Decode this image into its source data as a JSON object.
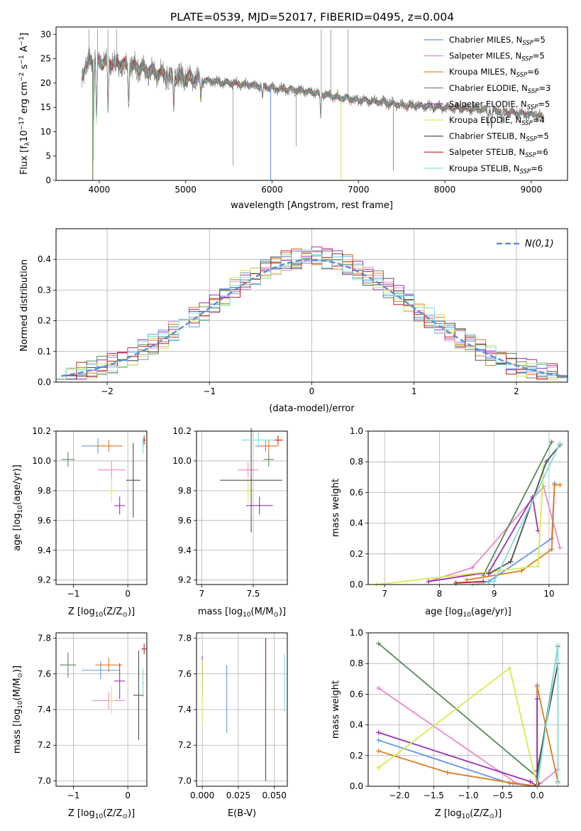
{
  "figure_title": "PLATE=0539, MJD=52017, FIBERID=0495, z=0.004",
  "colors": {
    "chabrier_miles": "#6495ed",
    "salpeter_miles": "#e98ac9",
    "kroupa_miles": "#e07b1f",
    "chabrier_elodie": "#5a8a5e",
    "salpeter_elodie": "#9b30b3",
    "kroupa_elodie": "#d4ec50",
    "chabrier_stelib": "#505050",
    "salpeter_stelib": "#c02020",
    "kroupa_stelib": "#80dede",
    "data": "#7f7f7f"
  },
  "chart_data": [
    {
      "id": "spectrum",
      "type": "line",
      "xlabel": "wavelength [Angstrom, rest frame]",
      "ylabel_parts": [
        "Flux [f",
        "λ",
        "10",
        "−17",
        " erg cm",
        "−2",
        " s",
        "−1",
        " A",
        "−1",
        "]"
      ],
      "xlim": [
        3500,
        9420
      ],
      "ylim": [
        0,
        31.5
      ],
      "xticks": [
        4000,
        5000,
        6000,
        7000,
        8000,
        9000
      ],
      "yticks": [
        0,
        5,
        10,
        15,
        20,
        25,
        30
      ],
      "legend_position": "top-right",
      "legend": [
        {
          "name": "Chabrier MILES, N",
          "sub": "SSP",
          "suffix": "=5",
          "color": "#6495ed"
        },
        {
          "name": "Salpeter MILES, N",
          "sub": "SSP",
          "suffix": "=5",
          "color": "#e98ac9"
        },
        {
          "name": "Kroupa MILES, N",
          "sub": "SSP",
          "suffix": "=6",
          "color": "#e07b1f"
        },
        {
          "name": "Chabrier ELODIE, N",
          "sub": "SSP",
          "suffix": "=3",
          "color": "#5a8a5e"
        },
        {
          "name": "Salpeter ELODIE, N",
          "sub": "SSP",
          "suffix": "=5",
          "color": "#9b30b3"
        },
        {
          "name": "Kroupa ELODIE, N",
          "sub": "SSP",
          "suffix": "=4",
          "color": "#d4ec50"
        },
        {
          "name": "Chabrier STELIB, N",
          "sub": "SSP",
          "suffix": "=5",
          "color": "#505050"
        },
        {
          "name": "Salpeter STELIB, N",
          "sub": "SSP",
          "suffix": "=6",
          "color": "#c02020"
        },
        {
          "name": "Kroupa STELIB, N",
          "sub": "SSP",
          "suffix": "=6",
          "color": "#80dede"
        }
      ],
      "continuum": [
        [
          3800,
          22
        ],
        [
          3900,
          25
        ],
        [
          4000,
          24.5
        ],
        [
          4200,
          24
        ],
        [
          4500,
          23
        ],
        [
          4800,
          21.5
        ],
        [
          5000,
          21
        ],
        [
          5200,
          20.5
        ],
        [
          5500,
          20
        ],
        [
          5800,
          19.5
        ],
        [
          6000,
          19
        ],
        [
          6300,
          18.5
        ],
        [
          6500,
          18
        ],
        [
          6800,
          17
        ],
        [
          7000,
          16.5
        ],
        [
          7300,
          16
        ],
        [
          7500,
          15.5
        ],
        [
          7800,
          15.2
        ],
        [
          8000,
          15
        ],
        [
          8500,
          14.5
        ],
        [
          9000,
          13.5
        ],
        [
          9150,
          13
        ]
      ],
      "absorptions": [
        [
          3934,
          10.5
        ],
        [
          3969,
          12
        ],
        [
          4102,
          14
        ],
        [
          4340,
          15
        ],
        [
          4861,
          16
        ],
        [
          5175,
          17
        ],
        [
          5890,
          17
        ],
        [
          6563,
          13
        ],
        [
          8498,
          12
        ],
        [
          8542,
          11
        ],
        [
          8662,
          12
        ]
      ],
      "data_spikes": [
        [
          3880,
          31
        ],
        [
          3980,
          31
        ],
        [
          4100,
          31
        ],
        [
          4200,
          31
        ],
        [
          5550,
          3
        ],
        [
          5985,
          0
        ],
        [
          6280,
          7
        ],
        [
          6570,
          31
        ],
        [
          6680,
          31
        ],
        [
          6800,
          0
        ],
        [
          6880,
          31
        ]
      ],
      "model_drops": [
        {
          "x": 3925,
          "to": 0,
          "color": "#e07b1f"
        },
        {
          "x": 3925,
          "to": 0,
          "color": "#5a8a5e"
        },
        {
          "x": 3935,
          "to": 4,
          "color": "#80dede"
        },
        {
          "x": 5985,
          "to": 0,
          "color": "#6495ed"
        },
        {
          "x": 6800,
          "to": 0,
          "color": "#d4ec50"
        },
        {
          "x": 7405,
          "to": 2,
          "color": "#e07b1f"
        }
      ]
    },
    {
      "id": "residuals",
      "type": "histogram",
      "xlabel": "(data-model)/error",
      "ylabel": "Normed distribution",
      "xlim": [
        -2.5,
        2.5
      ],
      "ylim": [
        0,
        0.5
      ],
      "xticks": [
        -2,
        -1,
        0,
        1,
        2
      ],
      "yticks": [
        0,
        0.1,
        0.2,
        0.3,
        0.4
      ],
      "grid": true,
      "reference_curve": {
        "label": "N(0,1)",
        "mean": 0,
        "sigma": 1,
        "color": "#5b8fd9"
      },
      "legend_position": "top-right"
    },
    {
      "id": "age-vs-Z",
      "type": "errorbar",
      "xlabel_parts": [
        "Z [log",
        "10",
        "(Z/Z",
        "⊙",
        ")]"
      ],
      "ylabel_parts": [
        "age  [log",
        "10",
        "(age/yr)]"
      ],
      "xlim": [
        -1.32,
        0.35
      ],
      "ylim": [
        9.17,
        10.2
      ],
      "xticks": [
        -1,
        0
      ],
      "yticks": [
        9.2,
        9.4,
        9.6,
        9.8,
        10.0,
        10.2
      ],
      "grid": true,
      "points": [
        {
          "color": "#6495ed",
          "x": -0.55,
          "y": 10.1,
          "xerr": 0.3,
          "yerr": 0.05
        },
        {
          "color": "#e98ac9",
          "x": -0.3,
          "y": 9.94,
          "xerr": 0.25,
          "yerr": 0.06
        },
        {
          "color": "#e07b1f",
          "x": -0.35,
          "y": 10.1,
          "xerr": 0.25,
          "yerr": 0.04
        },
        {
          "color": "#5a8a5e",
          "x": -1.1,
          "y": 10.01,
          "xerr": 0.12,
          "yerr": 0.05
        },
        {
          "color": "#9b30b3",
          "x": -0.15,
          "y": 9.7,
          "xerr": 0.1,
          "yerr": 0.06
        },
        {
          "color": "#d4ec50",
          "x": -0.3,
          "y": 9.8,
          "xerr": 0.08,
          "yerr": 0.08
        },
        {
          "color": "#505050",
          "x": 0.1,
          "y": 9.87,
          "xerr": 0.13,
          "yerr": 0.25
        },
        {
          "color": "#c02020",
          "x": 0.3,
          "y": 10.14,
          "xerr": 0.03,
          "yerr": 0.03
        },
        {
          "color": "#80dede",
          "x": 0.28,
          "y": 10.1,
          "xerr": 0.02,
          "yerr": 0.05
        }
      ]
    },
    {
      "id": "age-vs-mass",
      "type": "errorbar",
      "xlabel_parts": [
        "mass [log",
        "10",
        "(M/M",
        "⊙",
        ")]"
      ],
      "ylabel_parts": [],
      "xlim": [
        6.95,
        7.83
      ],
      "ylim": [
        9.17,
        10.2
      ],
      "xticks": [
        7.0,
        7.5
      ],
      "yticks": [
        9.2,
        9.4,
        9.6,
        9.8,
        10.0,
        10.2
      ],
      "grid": true,
      "points": [
        {
          "color": "#6495ed",
          "x": 7.62,
          "y": 10.1,
          "xerr": 0.1,
          "yerr": 0.04
        },
        {
          "color": "#e98ac9",
          "x": 7.45,
          "y": 9.94,
          "xerr": 0.1,
          "yerr": 0.05
        },
        {
          "color": "#e07b1f",
          "x": 7.65,
          "y": 10.1,
          "xerr": 0.1,
          "yerr": 0.04
        },
        {
          "color": "#5a8a5e",
          "x": 7.65,
          "y": 10.01,
          "xerr": 0.05,
          "yerr": 0.05
        },
        {
          "color": "#9b30b3",
          "x": 7.56,
          "y": 9.7,
          "xerr": 0.13,
          "yerr": 0.06
        },
        {
          "color": "#d4ec50",
          "x": 7.45,
          "y": 9.8,
          "xerr": 0.05,
          "yerr": 0.08
        },
        {
          "color": "#505050",
          "x": 7.48,
          "y": 9.87,
          "xerr": 0.3,
          "yerr": 0.35
        },
        {
          "color": "#c02020",
          "x": 7.74,
          "y": 10.14,
          "xerr": 0.05,
          "yerr": 0.03
        },
        {
          "color": "#80dede",
          "x": 7.55,
          "y": 10.14,
          "xerr": 0.16,
          "yerr": 0.05
        }
      ]
    },
    {
      "id": "weight-vs-age",
      "type": "line",
      "xlabel_parts": [
        "age  [log",
        "10",
        "(age/yr)]"
      ],
      "ylabel": "mass weight",
      "xlim": [
        6.7,
        10.35
      ],
      "ylim": [
        0,
        1.0
      ],
      "xticks": [
        7,
        8,
        9,
        10
      ],
      "yticks": [
        0,
        0.2,
        0.4,
        0.6,
        0.8,
        1.0
      ],
      "grid": true,
      "series": [
        {
          "color": "#6495ed",
          "x": [
            8.3,
            8.9,
            10.05,
            10.1
          ],
          "y": [
            0.01,
            0.02,
            0.3,
            0.66
          ]
        },
        {
          "color": "#e98ac9",
          "x": [
            7.8,
            8.6,
            9.9,
            10.2
          ],
          "y": [
            0.02,
            0.11,
            0.64,
            0.24
          ]
        },
        {
          "color": "#e07b1f",
          "x": [
            8.5,
            9.5,
            10.05,
            10.1,
            10.2
          ],
          "y": [
            0.03,
            0.09,
            0.23,
            0.65,
            0.65
          ]
        },
        {
          "color": "#5a8a5e",
          "x": [
            8.8,
            10.05
          ],
          "y": [
            0.06,
            0.93
          ]
        },
        {
          "color": "#9b30b3",
          "x": [
            7.8,
            8.9,
            9.7,
            9.8
          ],
          "y": [
            0.02,
            0.08,
            0.57,
            0.35
          ]
        },
        {
          "color": "#d4ec50",
          "x": [
            6.85,
            9.8,
            9.9
          ],
          "y": [
            0.0,
            0.12,
            0.77
          ]
        },
        {
          "color": "#505050",
          "x": [
            8.9,
            9.3,
            9.95,
            10.2
          ],
          "y": [
            0.07,
            0.15,
            0.8,
            0.91
          ]
        },
        {
          "color": "#c02020",
          "x": [
            8.3,
            8.8
          ],
          "y": [
            0.01,
            0.02
          ]
        },
        {
          "color": "#80dede",
          "x": [
            8.6,
            9.0,
            10.2
          ],
          "y": [
            0.0,
            0.02,
            0.92
          ]
        }
      ]
    },
    {
      "id": "mass-vs-Z",
      "type": "errorbar",
      "xlabel_parts": [
        "Z [log",
        "10",
        "(Z/Z",
        "⊙",
        ")]"
      ],
      "ylabel_parts": [
        "mass [log",
        "10",
        "(M/M",
        "⊙",
        ")]"
      ],
      "xlim": [
        -1.32,
        0.35
      ],
      "ylim": [
        6.97,
        7.83
      ],
      "xticks": [
        -1,
        0
      ],
      "yticks": [
        7.0,
        7.2,
        7.4,
        7.6,
        7.8
      ],
      "grid": true,
      "points": [
        {
          "color": "#6495ed",
          "x": -0.5,
          "y": 7.62,
          "xerr": 0.35,
          "yerr": 0.05
        },
        {
          "color": "#e98ac9",
          "x": -0.35,
          "y": 7.45,
          "xerr": 0.3,
          "yerr": 0.05
        },
        {
          "color": "#e07b1f",
          "x": -0.35,
          "y": 7.65,
          "xerr": 0.25,
          "yerr": 0.04
        },
        {
          "color": "#5a8a5e",
          "x": -1.1,
          "y": 7.65,
          "xerr": 0.15,
          "yerr": 0.07
        },
        {
          "color": "#9b30b3",
          "x": -0.15,
          "y": 7.56,
          "xerr": 0.1,
          "yerr": 0.1
        },
        {
          "color": "#d4ec50",
          "x": -0.3,
          "y": 7.45,
          "xerr": 0.05,
          "yerr": 0.08
        },
        {
          "color": "#505050",
          "x": 0.2,
          "y": 7.48,
          "xerr": 0.1,
          "yerr": 0.25
        },
        {
          "color": "#c02020",
          "x": 0.3,
          "y": 7.74,
          "xerr": 0.05,
          "yerr": 0.03
        },
        {
          "color": "#80dede",
          "x": 0.28,
          "y": 7.55,
          "xerr": 0.02,
          "yerr": 0.08
        }
      ]
    },
    {
      "id": "mass-vs-ebv",
      "type": "errorbar",
      "xlabel": "E(B-V)",
      "ylabel_parts": [],
      "xlim": [
        -0.004,
        0.059
      ],
      "ylim": [
        6.97,
        7.83
      ],
      "xticks": [
        0.0,
        0.025,
        0.05
      ],
      "xtick_labels": [
        "0.000",
        "0.025",
        "0.050"
      ],
      "yticks": [
        7.0,
        7.2,
        7.4,
        7.6,
        7.8
      ],
      "grid": true,
      "points": [
        {
          "color": "#6495ed",
          "x": 0.017,
          "y": 7.46,
          "xerr": 0,
          "yerr": 0.19
        },
        {
          "color": "#e98ac9",
          "x": 0.0,
          "y": 7.6,
          "xerr": 0,
          "yerr": 0.08
        },
        {
          "color": "#e07b1f",
          "x": 0.0,
          "y": 7.55,
          "xerr": 0,
          "yerr": 0.08
        },
        {
          "color": "#9b30b3",
          "x": 0.0,
          "y": 7.65,
          "xerr": 0,
          "yerr": 0.05
        },
        {
          "color": "#d4ec50",
          "x": 0.0,
          "y": 7.5,
          "xerr": 0,
          "yerr": 0.18
        },
        {
          "color": "#505050",
          "x": 0.044,
          "y": 7.4,
          "xerr": 0,
          "yerr": 0.4
        },
        {
          "color": "#c02020",
          "x": 0.044,
          "y": 7.65,
          "xerr": 0,
          "yerr": 0.15
        },
        {
          "color": "#80dede",
          "x": 0.057,
          "y": 7.55,
          "xerr": 0,
          "yerr": 0.16
        }
      ]
    },
    {
      "id": "weight-vs-Z",
      "type": "line",
      "xlabel_parts": [
        "Z [log",
        "10",
        "(Z/Z",
        "⊙",
        ")]"
      ],
      "ylabel": "mass weight",
      "xlim": [
        -2.45,
        0.45
      ],
      "ylim": [
        0,
        1.0
      ],
      "xticks": [
        -2.0,
        -1.5,
        -1.0,
        -0.5,
        0.0
      ],
      "xtick_labels": [
        "−2.0",
        "−1.5",
        "−1.0",
        "−0.5",
        "0.0"
      ],
      "yticks": [
        0,
        0.2,
        0.4,
        0.6,
        0.8,
        1.0
      ],
      "grid": true,
      "series": [
        {
          "color": "#6495ed",
          "x": [
            -2.3,
            -0.4,
            0.0,
            0.0
          ],
          "y": [
            0.3,
            0.02,
            0.0,
            0.66
          ]
        },
        {
          "color": "#e98ac9",
          "x": [
            -2.3,
            -0.3,
            0.0,
            0.3
          ],
          "y": [
            0.64,
            0.02,
            0.0,
            0.11
          ]
        },
        {
          "color": "#e07b1f",
          "x": [
            -2.3,
            -1.3,
            -0.35,
            0.0,
            0.0,
            0.3
          ],
          "y": [
            0.23,
            0.09,
            0.02,
            0.0,
            0.65,
            0.03
          ]
        },
        {
          "color": "#5a8a5e",
          "x": [
            -2.3,
            0.0,
            0.3
          ],
          "y": [
            0.93,
            0.06,
            0.91
          ]
        },
        {
          "color": "#9b30b3",
          "x": [
            -2.3,
            -0.1,
            0.0,
            0.0
          ],
          "y": [
            0.35,
            0.03,
            0.0,
            0.57
          ]
        },
        {
          "color": "#d4ec50",
          "x": [
            -2.3,
            -0.4,
            0.0
          ],
          "y": [
            0.12,
            0.77,
            0.0
          ]
        },
        {
          "color": "#505050",
          "x": [
            0.0,
            0.3
          ],
          "y": [
            0.1,
            0.8
          ]
        },
        {
          "color": "#c02020",
          "x": [
            0.0,
            0.02
          ],
          "y": [
            0.01,
            0.02
          ]
        },
        {
          "color": "#80dede",
          "x": [
            0.0,
            0.3,
            0.3
          ],
          "y": [
            0.0,
            0.92,
            0.02
          ]
        }
      ]
    }
  ]
}
